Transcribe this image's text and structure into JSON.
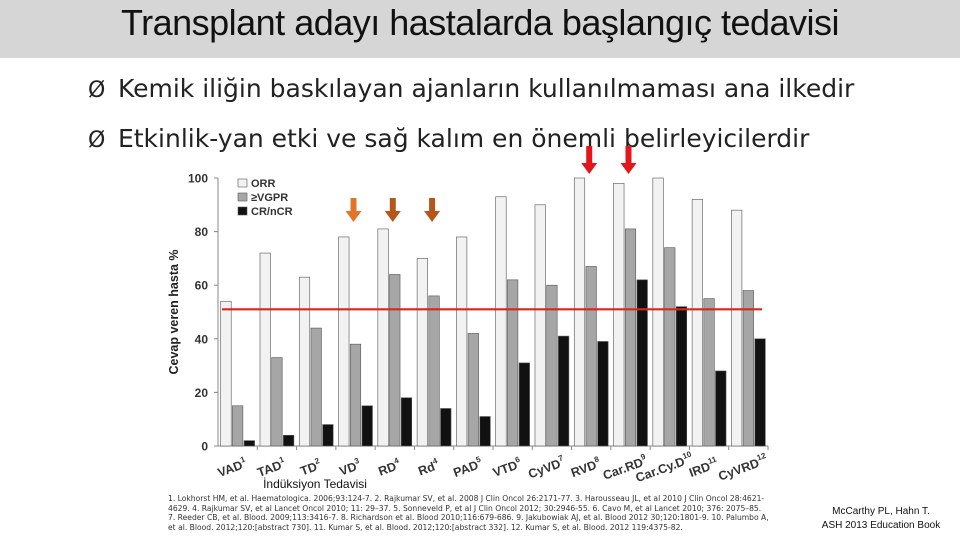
{
  "slide": {
    "title": "Transplant adayı hastalarda başlangıç tedavisi",
    "bullets": [
      "Kemik iliğin baskılayan ajanların kullanılmaması ana ilkedir",
      "Etkinlik-yan etki ve sağ kalım en önemli belirleyicilerdir"
    ],
    "bullet_marker": "Ø",
    "references": [
      "1. Lokhorst HM, et al. Haematologica. 2006;93:124-7. 2. Rajkumar SV, et al. 2008 J Clin Oncol 26:2171-77. 3. Harousseau JL, et al 2010 J Clin Oncol 28:4621-",
      "4629. 4. Rajkumar SV, et al Lancet Oncol 2010; 11: 29–37. 5. Sonneveld P, et al J Clin Oncol 2012; 30:2946-55. 6. Cavo M, et al Lancet 2010; 376: 2075–85.",
      "7. Reeder CB, et al. Blood. 2009;113:3416-7. 8. Richardson et al. Blood 2010;116:679-686. 9. Jakubowiak AJ, et al. Blood 2012 30;120:1801-9. 10. Palumbo A,",
      "et al. Blood. 2012;120:[abstract 730]. 11. Kumar S, et al. Blood. 2012;120:[abstract 332]. 12. Kumar S, et al. Blood. 2012 119:4375-82."
    ],
    "credit": [
      "McCarthy PL, Hahn T.",
      "ASH 2013 Education Book"
    ]
  },
  "chart_data": {
    "type": "bar",
    "ylabel": "Cevap veren hasta %",
    "xlabel": "İndüksiyon Tedavisi",
    "ylim": [
      0,
      100
    ],
    "yticks": [
      0,
      20,
      40,
      60,
      80,
      100
    ],
    "grid": false,
    "legend_position": "top-left",
    "categories": [
      "VAD1",
      "TAD1",
      "TD2",
      "VD3",
      "RD4",
      "Rd4",
      "PAD5",
      "VTD6",
      "CyVD7",
      "RVD8",
      "CarRD9",
      "CarCyD10",
      "IRD11",
      "CyVRD12"
    ],
    "category_labels": [
      {
        "base": "VAD",
        "sup": "1"
      },
      {
        "base": "TAD",
        "sup": "1"
      },
      {
        "base": "TD",
        "sup": "2"
      },
      {
        "base": "VD",
        "sup": "3"
      },
      {
        "base": "RD",
        "sup": "4"
      },
      {
        "base": "Rd",
        "sup": "4"
      },
      {
        "base": "PAD",
        "sup": "5"
      },
      {
        "base": "VTD",
        "sup": "6"
      },
      {
        "base": "CyVD",
        "sup": "7"
      },
      {
        "base": "RVD",
        "sup": "8"
      },
      {
        "base": "Car.RD",
        "sup": "9"
      },
      {
        "base": "Car.Cy.D",
        "sup": "10"
      },
      {
        "base": "IRD",
        "sup": "11"
      },
      {
        "base": "CyVRD",
        "sup": "12"
      }
    ],
    "series": [
      {
        "name": "ORR",
        "color": "#f2f2f2",
        "values": [
          54,
          72,
          63,
          78,
          81,
          70,
          78,
          93,
          90,
          100,
          98,
          100,
          92,
          88
        ]
      },
      {
        "name": "≥VGPR",
        "color": "#a6a6a6",
        "values": [
          15,
          33,
          44,
          38,
          64,
          56,
          42,
          62,
          60,
          67,
          81,
          74,
          55,
          58
        ]
      },
      {
        "name": "CR/nCR",
        "color": "#111111",
        "values": [
          2,
          4,
          8,
          15,
          18,
          14,
          11,
          31,
          41,
          39,
          62,
          52,
          28,
          40
        ]
      }
    ],
    "reference_line": {
      "value": 51,
      "color": "#d9261c"
    },
    "highlight_arrows": [
      {
        "category": "VD3",
        "color": "#e0762a"
      },
      {
        "category": "RD4",
        "color": "#b8561a"
      },
      {
        "category": "Rd4",
        "color": "#b8561a"
      },
      {
        "category": "RVD8",
        "color": "#e3171b"
      },
      {
        "category": "CarRD9",
        "color": "#e3171b"
      }
    ]
  }
}
